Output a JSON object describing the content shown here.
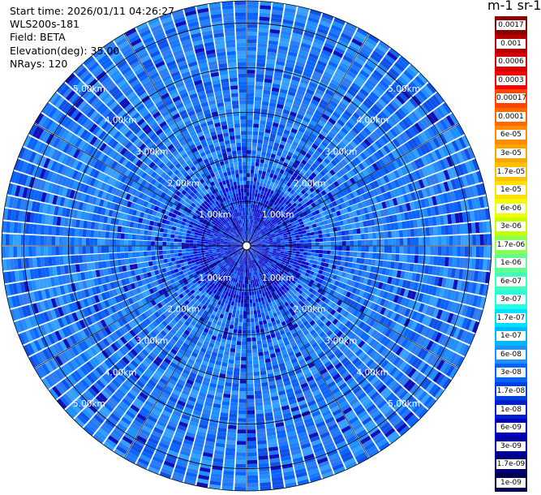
{
  "header": {
    "start_time": "Start time: 2026/01/11 04:26:27",
    "instrument": "WLS200s-181",
    "field": "Field: BETA",
    "elevation": "Elevation(deg): 35.00",
    "nrays": "NRays: 120"
  },
  "colorbar": {
    "unit_label": "m-1 sr-1",
    "labels": [
      "0.0017",
      "0.001",
      "0.0006",
      "0.0003",
      "0.00017",
      "0.0001",
      "6e-05",
      "3e-05",
      "1.7e-05",
      "1e-05",
      "6e-06",
      "3e-06",
      "1.7e-06",
      "1e-06",
      "6e-07",
      "3e-07",
      "1.7e-07",
      "1e-07",
      "6e-08",
      "3e-08",
      "1.7e-08",
      "1e-08",
      "6e-09",
      "3e-09",
      "1.7e-09",
      "1e-09"
    ],
    "colors": [
      "#8b0000",
      "#b30000",
      "#d60000",
      "#ff0000",
      "#ff4500",
      "#ff6a00",
      "#ff8c00",
      "#ffa500",
      "#ffc000",
      "#ffe000",
      "#f0ff00",
      "#c8ff00",
      "#90ff50",
      "#60ff90",
      "#40ffb8",
      "#20ffe0",
      "#00e0ff",
      "#00b8ff",
      "#1e90ff",
      "#0064ff",
      "#0040e0",
      "#0020d0",
      "#0000c0",
      "#00009c",
      "#000078",
      "#000050"
    ]
  },
  "chart_data": {
    "type": "polar-ppi",
    "field": "BETA",
    "nrays": 120,
    "elevation_deg": 35.0,
    "max_range_km": 5.5,
    "range_rings_km": [
      1.0,
      2.0,
      3.0,
      4.0,
      5.0
    ],
    "ring_labels": [
      "1.00km",
      "2.00km",
      "3.00km",
      "4.00km",
      "5.00km"
    ],
    "azimuth_lines_deg": [
      0,
      30,
      60,
      90,
      120,
      150,
      180,
      210,
      240,
      270,
      300,
      330
    ],
    "dominant_range_bins": "1e-08 to 6e-08 (blue) with near-range values 3e-09 to 1e-08 (dark blue)",
    "grid": true
  }
}
